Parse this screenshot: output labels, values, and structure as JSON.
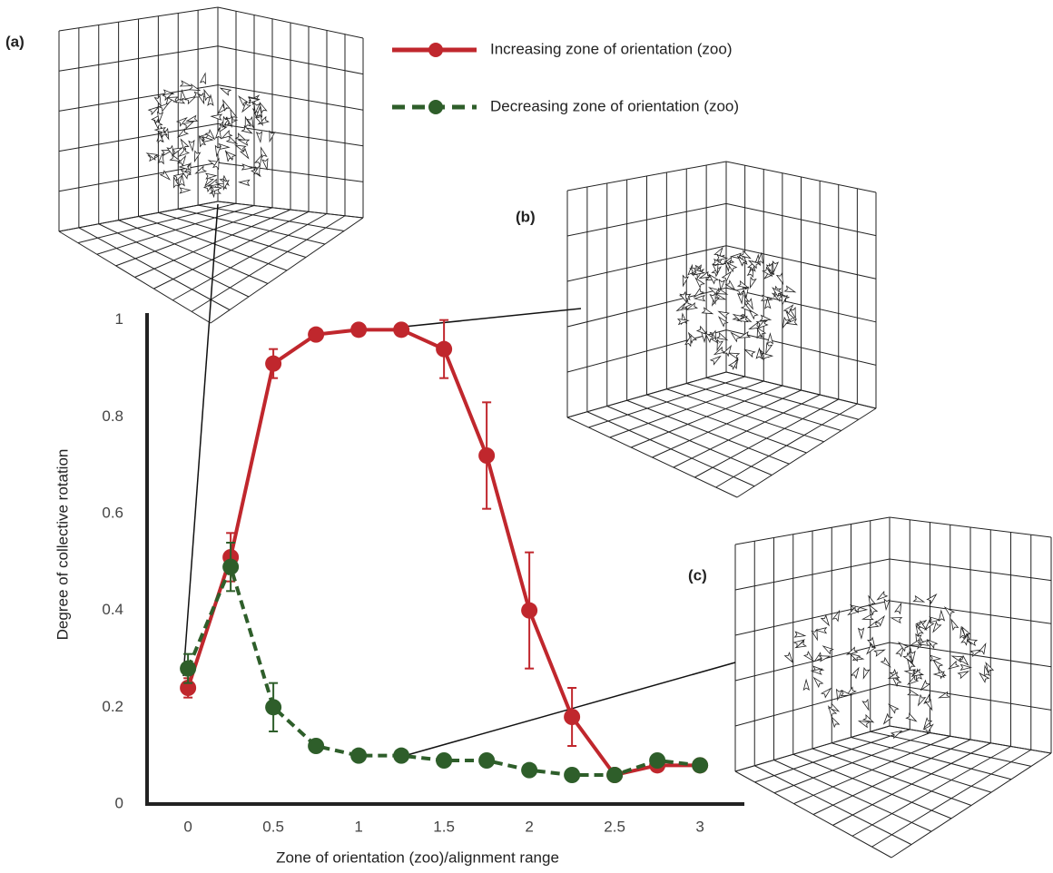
{
  "chart_data": {
    "type": "line",
    "x_label": "Zone of orientation (zoo)/alignment range",
    "y_label": "Degree of collective rotation",
    "x": [
      0,
      0.25,
      0.5,
      0.75,
      1,
      1.25,
      1.5,
      1.75,
      2,
      2.25,
      2.5,
      2.75,
      3
    ],
    "xlim": [
      -0.24,
      3.26
    ],
    "xticks": [
      0,
      0.5,
      1,
      1.5,
      2,
      2.5,
      3
    ],
    "ylim": [
      0,
      1.02
    ],
    "yticks": [
      0,
      0.2,
      0.4,
      0.6,
      0.8,
      1
    ],
    "series": [
      {
        "name": "Increasing zone of orientation (zoo)",
        "color": "#c0272d",
        "dashed": false,
        "values": [
          0.24,
          0.51,
          0.91,
          0.97,
          0.98,
          0.98,
          0.94,
          0.72,
          0.4,
          0.18,
          0.06,
          0.08,
          0.08
        ],
        "errors": [
          0.02,
          0.05,
          0.03,
          0,
          0,
          0,
          0.06,
          0.11,
          0.12,
          0.06,
          0,
          0,
          0
        ]
      },
      {
        "name": "Decreasing zone of orientation (zoo)",
        "color": "#2e5e2a",
        "dashed": true,
        "values": [
          0.28,
          0.49,
          0.2,
          0.12,
          0.1,
          0.1,
          0.09,
          0.09,
          0.07,
          0.06,
          0.06,
          0.09,
          0.08
        ],
        "errors": [
          0.03,
          0.05,
          0.05,
          0,
          0,
          0,
          0,
          0,
          0,
          0,
          0,
          0,
          0
        ]
      }
    ],
    "annotations": [
      "(a)",
      "(b)",
      "(c)"
    ]
  }
}
